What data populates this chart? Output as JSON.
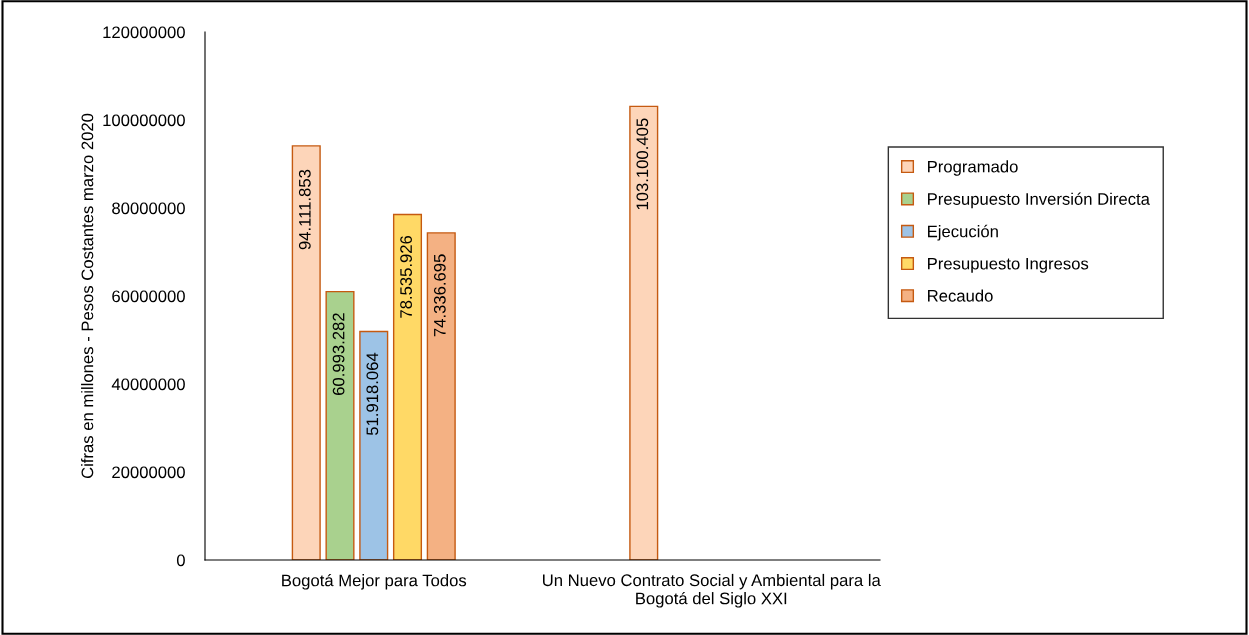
{
  "chart_data": {
    "type": "bar",
    "ylabel": "Cifras en millones - Pesos Costantes marzo 2020",
    "categories": [
      "Bogotá Mejor para Todos",
      "Un Nuevo Contrato Social y Ambiental para la Bogotá del Siglo XXI"
    ],
    "series": [
      {
        "name": "Programado",
        "color": "#fdd5b9",
        "values": [
          94111853,
          103100405
        ],
        "value_labels": [
          "94.111.853",
          "103.100.405"
        ]
      },
      {
        "name": "Presupuesto Inversión Directa",
        "color": "#a9d18e",
        "values": [
          60993282,
          null
        ],
        "value_labels": [
          "60.993.282",
          null
        ]
      },
      {
        "name": "Ejecución",
        "color": "#9dc3e6",
        "values": [
          51918064,
          null
        ],
        "value_labels": [
          "51.918.064",
          null
        ]
      },
      {
        "name": "Presupuesto Ingresos",
        "color": "#ffd966",
        "values": [
          78535926,
          null
        ],
        "value_labels": [
          "78.535.926",
          null
        ]
      },
      {
        "name": "Recaudo",
        "color": "#f4b183",
        "values": [
          74336695,
          null
        ],
        "value_labels": [
          "74.336.695",
          null
        ]
      }
    ],
    "ylim": [
      0,
      120000000
    ],
    "yticks": [
      0,
      20000000,
      40000000,
      60000000,
      80000000,
      100000000,
      120000000
    ],
    "grid": false,
    "legend": "right"
  }
}
